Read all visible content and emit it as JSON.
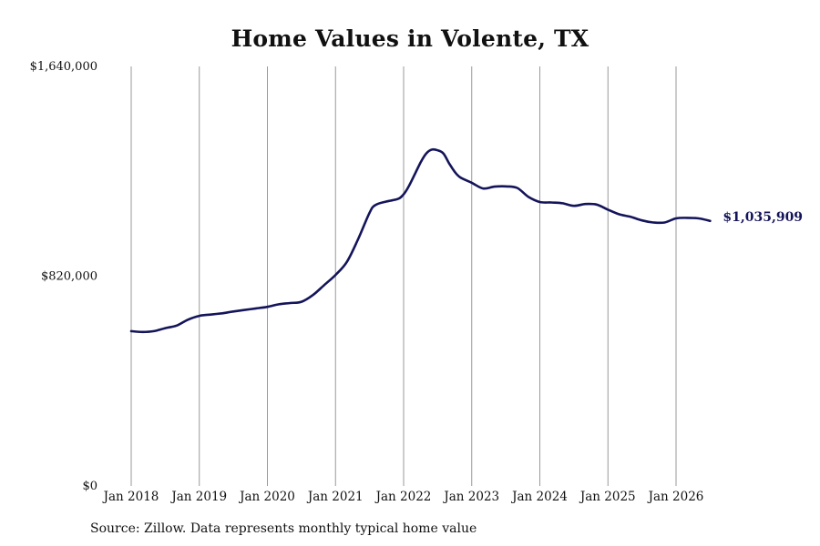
{
  "colors": {
    "line": "#14145a",
    "grid": "#999999",
    "end_label": "#14145a"
  },
  "chart_data": {
    "type": "line",
    "title": "Home Values in Volente, TX",
    "xlabel": "",
    "ylabel": "",
    "grid": "vertical",
    "source": "Source: Zillow. Data represents monthly typical home value",
    "xlim": [
      "2018-01",
      "2026-07"
    ],
    "ylim": [
      0,
      1640000
    ],
    "y_ticks": [
      {
        "value": 0,
        "label": "$0"
      },
      {
        "value": 820000,
        "label": "$820,000"
      },
      {
        "value": 1640000,
        "label": "$1,640,000"
      }
    ],
    "x_ticks": [
      {
        "value": "2018-01",
        "label": "Jan 2018"
      },
      {
        "value": "2019-01",
        "label": "Jan 2019"
      },
      {
        "value": "2020-01",
        "label": "Jan 2020"
      },
      {
        "value": "2021-01",
        "label": "Jan 2021"
      },
      {
        "value": "2022-01",
        "label": "Jan 2022"
      },
      {
        "value": "2023-01",
        "label": "Jan 2023"
      },
      {
        "value": "2024-01",
        "label": "Jan 2024"
      },
      {
        "value": "2025-01",
        "label": "Jan 2025"
      },
      {
        "value": "2026-01",
        "label": "Jan 2026"
      }
    ],
    "end_label": "$1,035,909",
    "series": [
      {
        "points": [
          [
            "2018-01",
            605000
          ],
          [
            "2018-03",
            602000
          ],
          [
            "2018-05",
            605000
          ],
          [
            "2018-07",
            617000
          ],
          [
            "2018-09",
            627000
          ],
          [
            "2018-11",
            650000
          ],
          [
            "2019-01",
            665000
          ],
          [
            "2019-03",
            670000
          ],
          [
            "2019-05",
            675000
          ],
          [
            "2019-07",
            682000
          ],
          [
            "2019-09",
            688000
          ],
          [
            "2019-11",
            694000
          ],
          [
            "2020-01",
            700000
          ],
          [
            "2020-03",
            710000
          ],
          [
            "2020-05",
            715000
          ],
          [
            "2020-07",
            720000
          ],
          [
            "2020-09",
            746000
          ],
          [
            "2020-11",
            785000
          ],
          [
            "2021-01",
            825000
          ],
          [
            "2021-03",
            876000
          ],
          [
            "2021-05",
            966000
          ],
          [
            "2021-07",
            1068000
          ],
          [
            "2021-08",
            1098000
          ],
          [
            "2021-10",
            1112000
          ],
          [
            "2021-12",
            1122000
          ],
          [
            "2022-01",
            1140000
          ],
          [
            "2022-02",
            1175000
          ],
          [
            "2022-04",
            1265000
          ],
          [
            "2022-05",
            1300000
          ],
          [
            "2022-06",
            1315000
          ],
          [
            "2022-07",
            1312000
          ],
          [
            "2022-08",
            1300000
          ],
          [
            "2022-09",
            1262000
          ],
          [
            "2022-10",
            1228000
          ],
          [
            "2022-11",
            1206000
          ],
          [
            "2023-01",
            1185000
          ],
          [
            "2023-03",
            1163000
          ],
          [
            "2023-05",
            1170000
          ],
          [
            "2023-07",
            1171000
          ],
          [
            "2023-09",
            1165000
          ],
          [
            "2023-11",
            1130000
          ],
          [
            "2024-01",
            1110000
          ],
          [
            "2024-03",
            1108000
          ],
          [
            "2024-05",
            1105000
          ],
          [
            "2024-07",
            1095000
          ],
          [
            "2024-09",
            1102000
          ],
          [
            "2024-11",
            1100000
          ],
          [
            "2025-01",
            1080000
          ],
          [
            "2025-03",
            1062000
          ],
          [
            "2025-05",
            1052000
          ],
          [
            "2025-07",
            1038000
          ],
          [
            "2025-09",
            1030000
          ],
          [
            "2025-11",
            1030000
          ],
          [
            "2026-01",
            1046000
          ],
          [
            "2026-03",
            1048000
          ],
          [
            "2026-05",
            1046000
          ],
          [
            "2026-07",
            1036000
          ]
        ]
      }
    ]
  }
}
